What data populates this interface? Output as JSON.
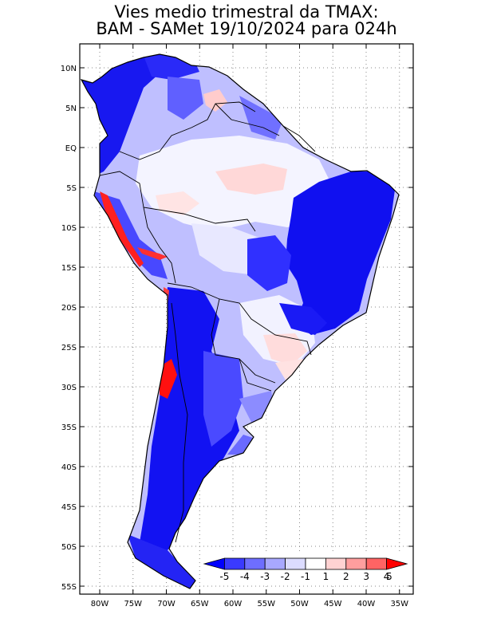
{
  "title": {
    "line1": "Vies medio trimestral da TMAX:",
    "line2": "BAM - SAMet 19/10/2024  para 024h"
  },
  "map": {
    "lat_labels": [
      "10N",
      "5N",
      "EQ",
      "5S",
      "10S",
      "15S",
      "20S",
      "25S",
      "30S",
      "35S",
      "40S",
      "45S",
      "50S",
      "55S"
    ],
    "lon_labels": [
      "80W",
      "75W",
      "70W",
      "65W",
      "60W",
      "55W",
      "50W",
      "45W",
      "40W",
      "35W"
    ],
    "colorbar": {
      "labels": [
        "-5",
        "-4",
        "-3",
        "-2",
        "-1",
        "1",
        "2",
        "3",
        "4",
        "5"
      ],
      "colors": [
        "#0000ff",
        "#3a3aff",
        "#6e6eff",
        "#a8a8ff",
        "#dcdcff",
        "#ffffff",
        "#ffd2d2",
        "#ff9e9e",
        "#ff6464",
        "#ff0000"
      ]
    }
  },
  "colors": {
    "deep_blue": "#1010f0",
    "mid_blue": "#5a5aff",
    "light_blue": "#b4b4ff",
    "pale_pink": "#ffd8d8",
    "red": "#ff1010"
  }
}
